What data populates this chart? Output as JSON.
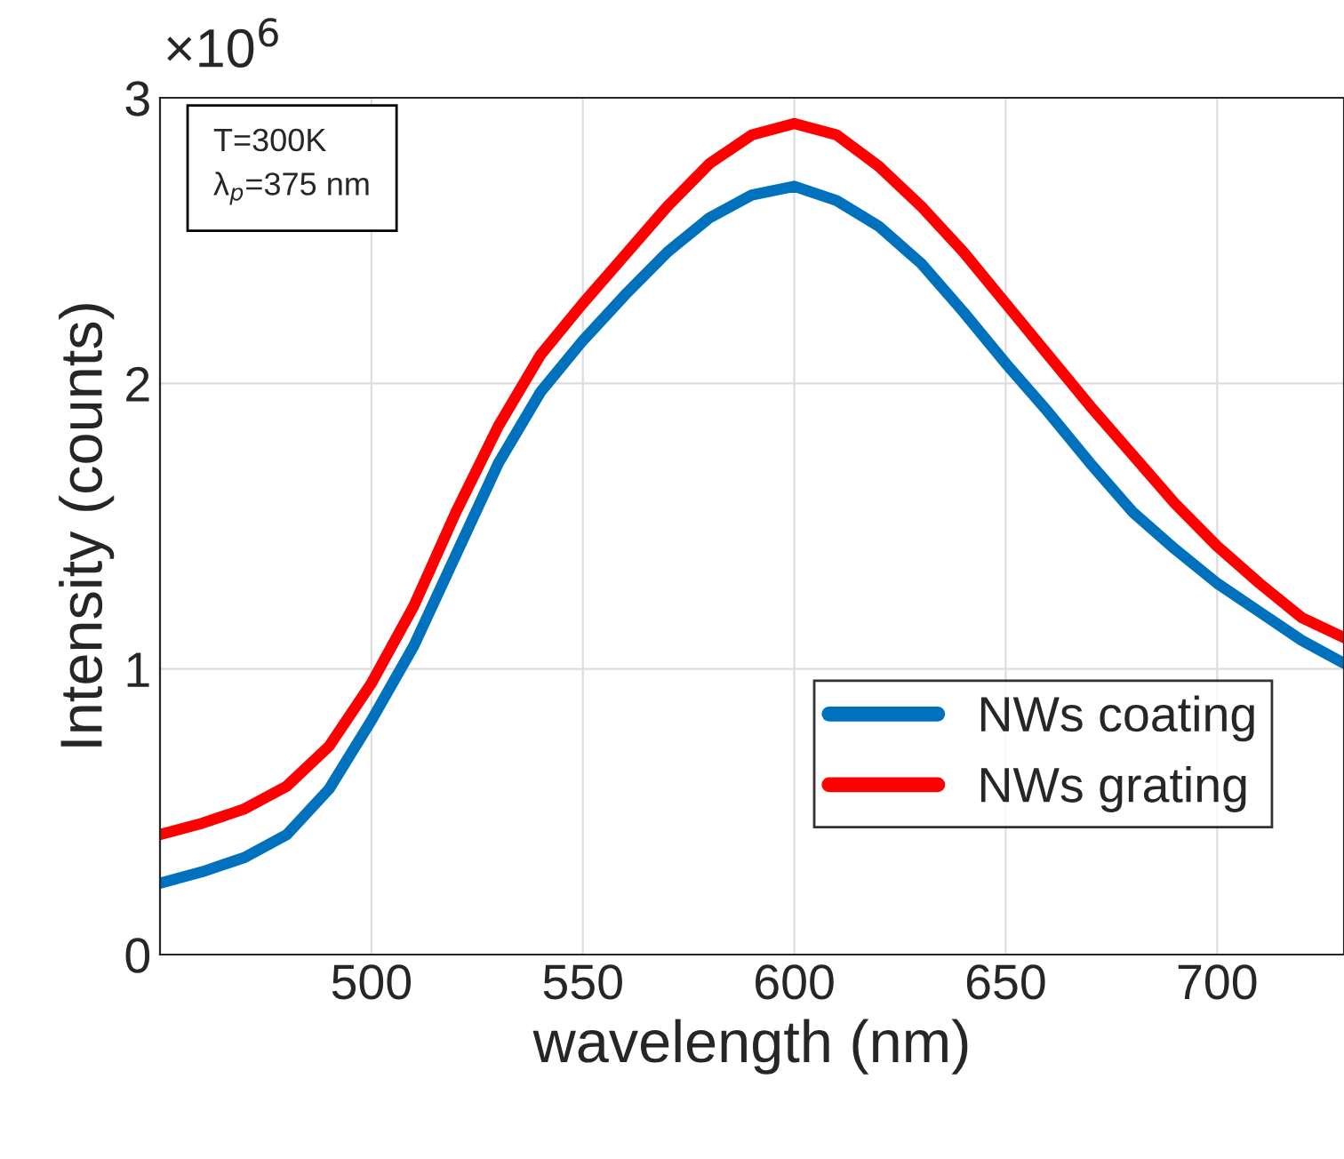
{
  "chart_data": {
    "type": "line",
    "xlabel": "wavelength (nm)",
    "ylabel": "Intensity (counts)",
    "annotations": [
      "×10$^{6}$",
      "T=300K\nλ$_{p}$=375 nm"
    ],
    "xlim": [
      450,
      730
    ],
    "xticks": [
      500,
      550,
      600,
      650,
      700
    ],
    "ylim": [
      0,
      3
    ],
    "yticks": [
      0,
      1,
      2,
      3
    ],
    "grid": true,
    "legend": "bottom right",
    "marker": "none",
    "line_style": "solid",
    "x": [
      450,
      460,
      470,
      480,
      490,
      500,
      510,
      520,
      530,
      540,
      550,
      560,
      570,
      580,
      590,
      600,
      610,
      620,
      630,
      640,
      650,
      660,
      670,
      680,
      690,
      700,
      710,
      720,
      730
    ],
    "series": [
      {
        "name": "NWs coating",
        "color": "#0072bd",
        "values": [
          0.25,
          0.29,
          0.34,
          0.42,
          0.58,
          0.82,
          1.08,
          1.4,
          1.72,
          1.97,
          2.15,
          2.31,
          2.46,
          2.58,
          2.66,
          2.69,
          2.64,
          2.55,
          2.42,
          2.25,
          2.07,
          1.9,
          1.72,
          1.55,
          1.42,
          1.3,
          1.2,
          1.1,
          1.02
        ]
      },
      {
        "name": "NWs grating",
        "color": "#ff0000",
        "values": [
          0.42,
          0.46,
          0.51,
          0.59,
          0.73,
          0.95,
          1.22,
          1.55,
          1.85,
          2.1,
          2.28,
          2.45,
          2.62,
          2.77,
          2.87,
          2.91,
          2.87,
          2.76,
          2.62,
          2.46,
          2.28,
          2.1,
          1.92,
          1.75,
          1.58,
          1.43,
          1.3,
          1.18,
          1.11
        ]
      }
    ]
  }
}
